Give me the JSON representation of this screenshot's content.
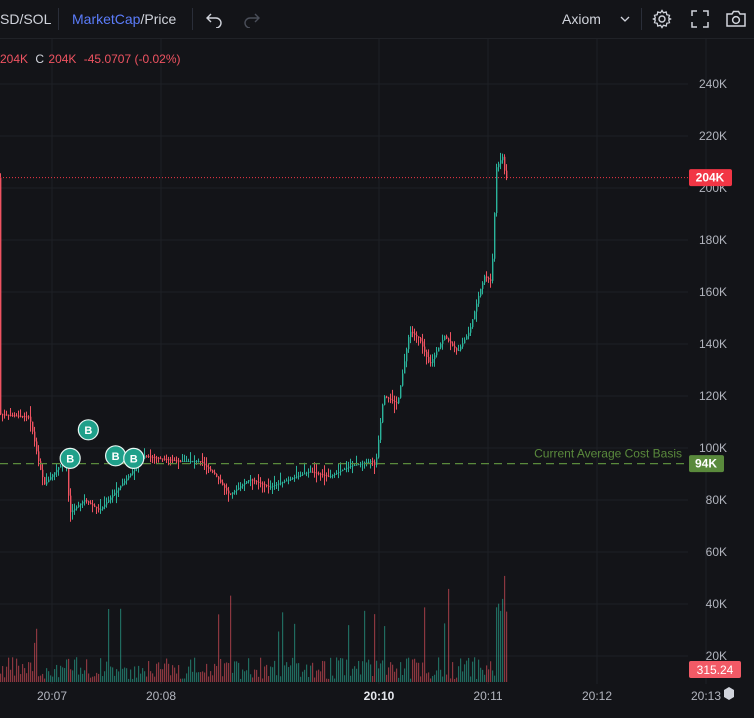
{
  "toolbar": {
    "pair_label": "SD/SOL",
    "mode_marketcap": "MarketCap",
    "mode_separator": "/",
    "mode_price": "Price",
    "source_label": "Axiom"
  },
  "ohlc": {
    "close_prefix_value": "204K",
    "close_letter": "C",
    "close_value": "204K",
    "change": "-45.0707 (-0.02%)"
  },
  "chart_data": {
    "type": "candlestick",
    "y_axis_ticks": [
      "240K",
      "220K",
      "200K",
      "180K",
      "160K",
      "140K",
      "120K",
      "100K",
      "80K",
      "60K",
      "40K",
      "20K"
    ],
    "x_axis_ticks": [
      "20:07",
      "20:08",
      "20:10",
      "20:11",
      "20:12",
      "20:13"
    ],
    "x_axis_bold_tick": "20:10",
    "last_price_label": "204K",
    "last_price_value": 204000,
    "cost_basis_label": "Current Average Cost Basis",
    "cost_basis_tag": "94K",
    "cost_basis_value": 94000,
    "volume_label": "315.24",
    "trade_markers": [
      {
        "label": "B",
        "time": "20:07:20",
        "value": 107000
      },
      {
        "label": "B",
        "time": "20:07:10",
        "value": 96000
      },
      {
        "label": "B",
        "time": "20:07:35",
        "value": 97000
      },
      {
        "label": "B",
        "time": "20:07:45",
        "value": 96000
      }
    ],
    "grid": true,
    "colors": {
      "up": "#2bb39b",
      "down": "#ef5361",
      "cost_basis": "#5a8a3c",
      "last_price": "#f23645"
    }
  }
}
